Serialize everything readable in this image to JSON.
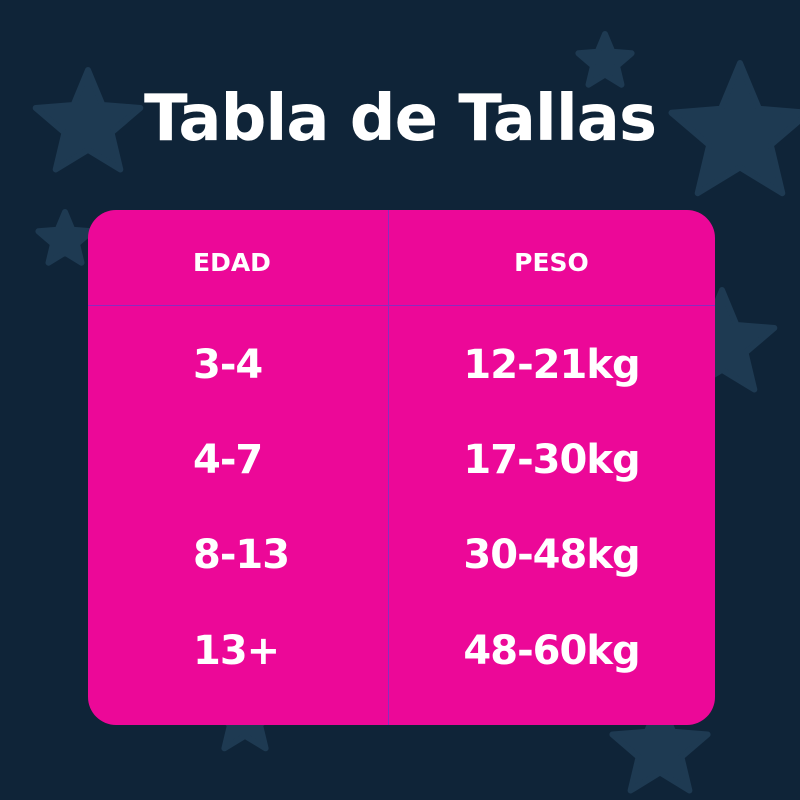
{
  "title": "Tabla de Tallas",
  "colors": {
    "background": "#0f2438",
    "table": "#ec0898",
    "stars": "#1e3a52",
    "text": "#ffffff"
  },
  "table": {
    "headers": [
      "EDAD",
      "PESO"
    ],
    "rows": [
      [
        "3-4",
        "12-21kg"
      ],
      [
        "4-7",
        "17-30kg"
      ],
      [
        "8-13",
        "30-48kg"
      ],
      [
        "13+",
        "48-60kg"
      ]
    ]
  }
}
